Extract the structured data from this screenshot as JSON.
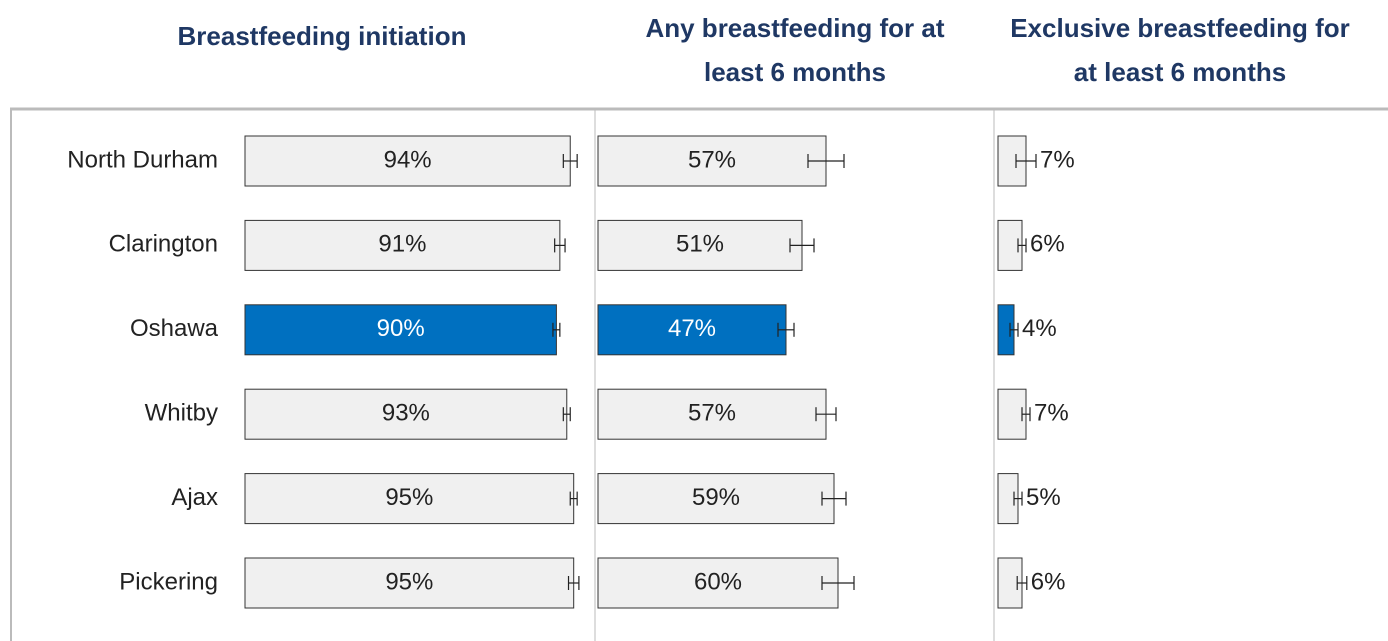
{
  "chart_data": [
    {
      "type": "bar",
      "title": "Breastfeeding initiation",
      "categories": [
        "North Durham",
        "Clarington",
        "Oshawa",
        "Whitby",
        "Ajax",
        "Pickering"
      ],
      "values": [
        94,
        91,
        90,
        93,
        95,
        95
      ],
      "value_labels": [
        "94%",
        "91%",
        "90%",
        "93%",
        "95%",
        "95%"
      ],
      "errors": [
        2,
        1.5,
        1,
        1,
        1,
        1.5
      ],
      "colors": [
        "#f0f0f0",
        "#f0f0f0",
        "#0070c0",
        "#f0f0f0",
        "#f0f0f0",
        "#f0f0f0"
      ],
      "xlim": [
        0,
        100
      ],
      "label_position": "inside"
    },
    {
      "type": "bar",
      "title": "Any breastfeeding for at least 6 months",
      "values": [
        57,
        51,
        47,
        57,
        59,
        60
      ],
      "value_labels": [
        "57%",
        "51%",
        "47%",
        "57%",
        "59%",
        "60%"
      ],
      "errors": [
        4.5,
        3,
        2,
        2.5,
        3,
        4
      ],
      "colors": [
        "#f0f0f0",
        "#f0f0f0",
        "#0070c0",
        "#f0f0f0",
        "#f0f0f0",
        "#f0f0f0"
      ],
      "xlim": [
        0,
        100
      ],
      "label_position": "inside"
    },
    {
      "type": "bar",
      "title": "Exclusive breastfeeding for at least 6 months",
      "values": [
        7,
        6,
        4,
        7,
        5,
        6
      ],
      "value_labels": [
        "7%",
        "6%",
        "4%",
        "7%",
        "5%",
        "6%"
      ],
      "errors": [
        2.5,
        1,
        1,
        1,
        1,
        1.2
      ],
      "colors": [
        "#f0f0f0",
        "#f0f0f0",
        "#0070c0",
        "#f0f0f0",
        "#f0f0f0",
        "#f0f0f0"
      ],
      "xlim": [
        0,
        100
      ],
      "label_position": "outside"
    }
  ]
}
